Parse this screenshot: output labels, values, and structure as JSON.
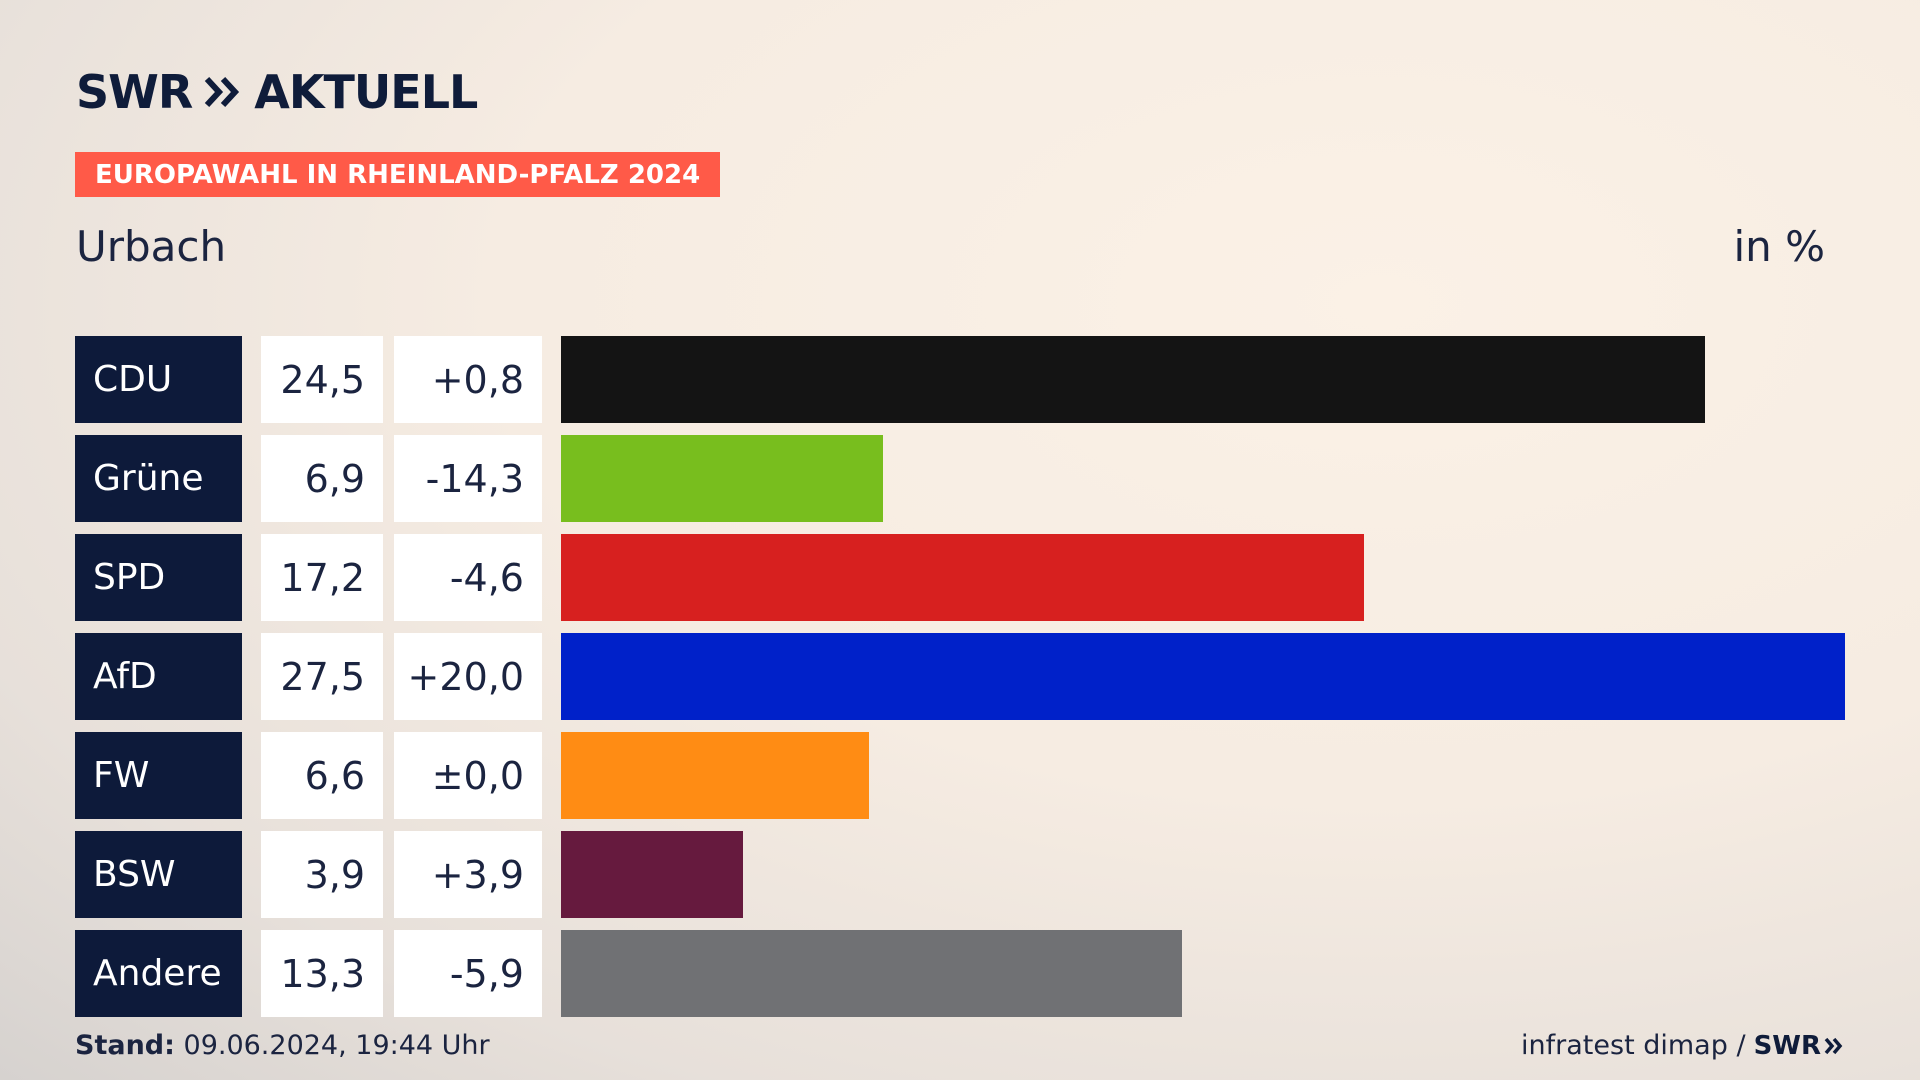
{
  "brand": {
    "logo_text": "SWR",
    "logo_subtitle": "AKTUELL",
    "colors": {
      "navy": "#0d1a3a",
      "tag": "#ff5a48"
    }
  },
  "tag": "EUROPAWAHL IN RHEINLAND-PFALZ 2024",
  "region": "Urbach",
  "unit": "in %",
  "chart_data": {
    "type": "bar",
    "orientation": "horizontal",
    "categories": [
      "CDU",
      "Grüne",
      "SPD",
      "AfD",
      "FW",
      "BSW",
      "Andere"
    ],
    "values": [
      24.5,
      6.9,
      17.2,
      27.5,
      6.6,
      3.9,
      13.3
    ],
    "value_labels": [
      "24,5",
      "6,9",
      "17,2",
      "27,5",
      "6,6",
      "3,9",
      "13,3"
    ],
    "diff_labels": [
      "+0,8",
      "-14,3",
      "-4,6",
      "+20,0",
      "±0,0",
      "+3,9",
      "-5,9"
    ],
    "colors": [
      "#141414",
      "#78be1e",
      "#d7201f",
      "#0021c9",
      "#ff8c14",
      "#661a3e",
      "#707174"
    ],
    "xlim": [
      0,
      27.5
    ],
    "grid": false,
    "legend": "none"
  },
  "footer": {
    "stand_label": "Stand:",
    "stand_value": "09.06.2024, 19:44 Uhr",
    "source": "infratest dimap /",
    "source_logo": "SWR"
  }
}
